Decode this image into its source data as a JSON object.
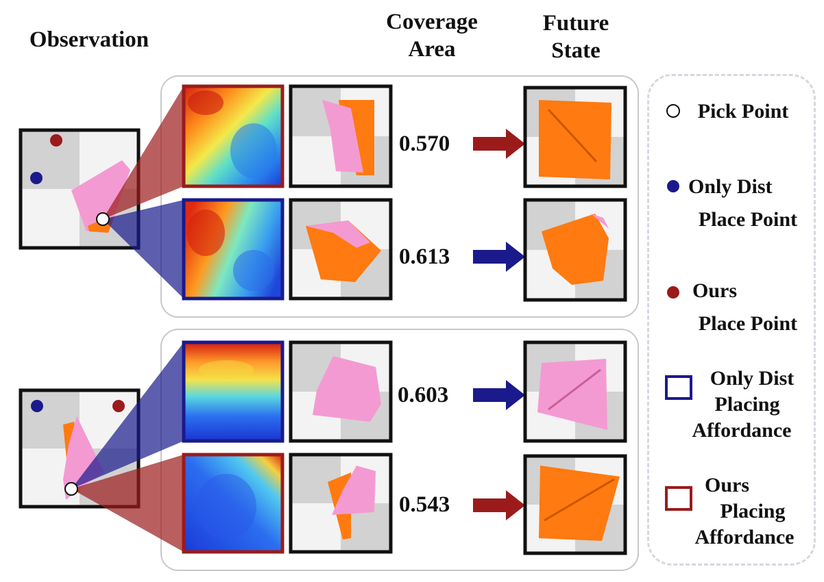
{
  "headers": {
    "observation": "Observation",
    "coverage_area": [
      "Coverage",
      "Area"
    ],
    "future_state": [
      "Future",
      "State"
    ]
  },
  "rows": [
    {
      "value": "0.570",
      "color": "#9b1b1b"
    },
    {
      "value": "0.613",
      "color": "#1a1a8c"
    },
    {
      "value": "0.603",
      "color": "#1a1a8c"
    },
    {
      "value": "0.543",
      "color": "#9b1b1b"
    }
  ],
  "legend": {
    "pick_point": "Pick Point",
    "only_dist_place": [
      "Only Dist",
      "Place Point"
    ],
    "ours_place": [
      "Ours",
      "Place Point"
    ],
    "only_dist_afford": [
      "Only Dist",
      "Placing",
      "Affordance"
    ],
    "ours_afford": [
      "Ours",
      "Placing",
      "Affordance"
    ]
  },
  "colors": {
    "ours_red": "#9b1b1b",
    "only_dist_blue": "#1a1a8c",
    "cloth_orange": "#ff7a10",
    "cloth_pink": "#f49ad2"
  }
}
